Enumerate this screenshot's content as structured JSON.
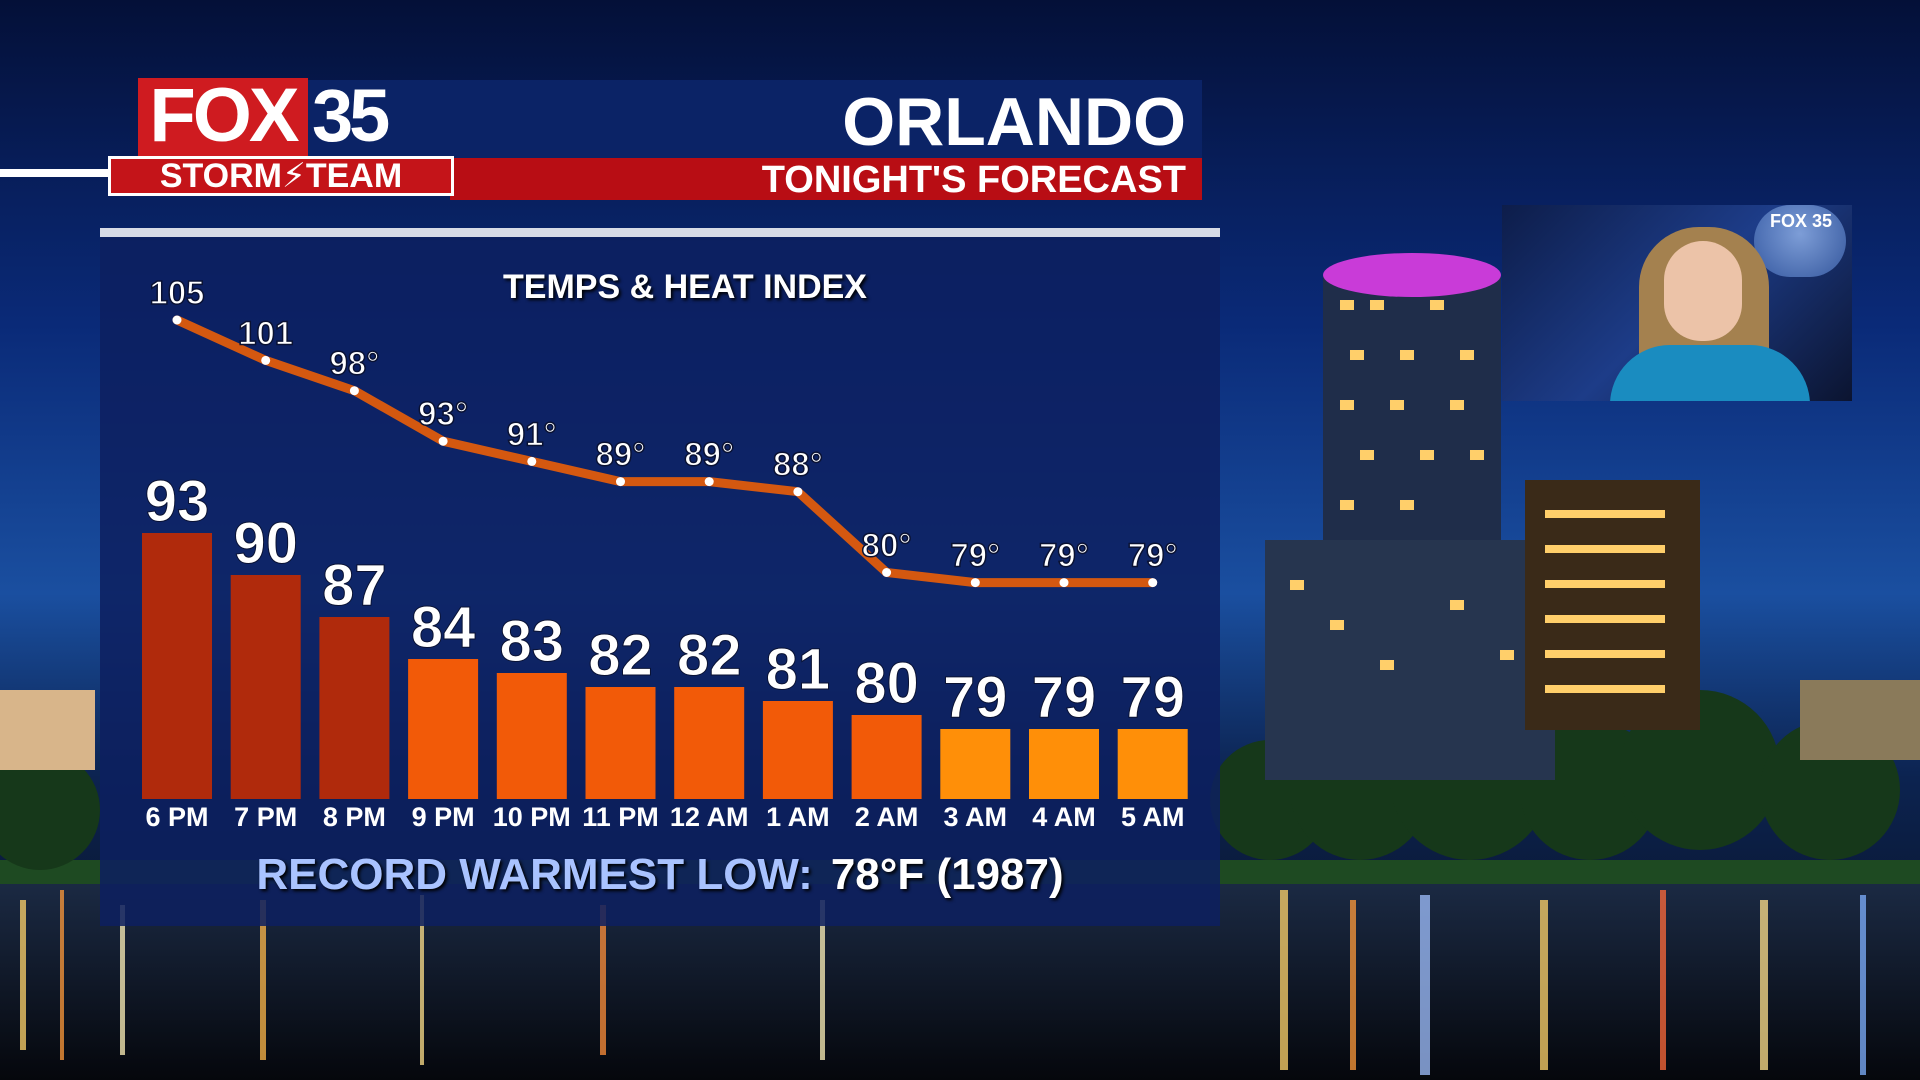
{
  "header": {
    "logo_fox": "FOX",
    "logo_number": "35",
    "logo_storm": "STORM⚡TEAM",
    "city": "ORLANDO",
    "subtitle": "TONIGHT'S FORECAST"
  },
  "chart_title": "TEMPS & HEAT INDEX",
  "record": {
    "label": "RECORD WARMEST LOW:",
    "value": "78°F (1987)"
  },
  "inset": {
    "badge_text": "FOX 35",
    "presenter_icon": "presenter-icon"
  },
  "colors": {
    "header_blue": "#0b2366",
    "header_red": "#b80d14",
    "bar_hot": "#b02a0c",
    "bar_warm": "#f25a08",
    "bar_cool": "#ff8f08",
    "line": "#d45810",
    "record_label": "#a9c3ff"
  },
  "chart_data": {
    "type": "bar",
    "title": "TEMPS & HEAT INDEX",
    "categories": [
      "6 PM",
      "7 PM",
      "8 PM",
      "9 PM",
      "10 PM",
      "11 PM",
      "12 AM",
      "1 AM",
      "2 AM",
      "3 AM",
      "4 AM",
      "5 AM"
    ],
    "series": [
      {
        "type": "bar",
        "values": [
          93,
          90,
          87,
          84,
          83,
          82,
          82,
          81,
          80,
          79,
          79,
          79
        ],
        "labels": [
          "93",
          "90",
          "87",
          "84",
          "83",
          "82",
          "82",
          "81",
          "80",
          "79",
          "79",
          "79"
        ]
      },
      {
        "type": "line",
        "values": [
          105,
          101,
          98,
          93,
          91,
          89,
          89,
          88,
          80,
          79,
          79,
          79
        ],
        "labels": [
          "105",
          "101",
          "98°",
          "93°",
          "91°",
          "89°",
          "89°",
          "88°",
          "80°",
          "79°",
          "79°",
          "79°"
        ]
      }
    ],
    "xlabel": "",
    "ylabel": "",
    "grid": false,
    "legend": "none"
  }
}
